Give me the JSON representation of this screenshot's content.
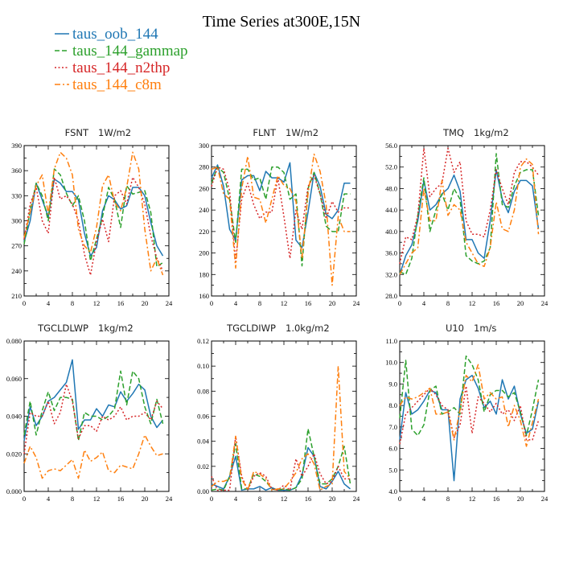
{
  "figure": {
    "title": "Time Series at300E,15N"
  },
  "legend": [
    {
      "label": "taus_oob_144",
      "color": "#1f77b4",
      "dash": "solid"
    },
    {
      "label": "taus_144_gammap",
      "color": "#2ca02c",
      "dash": "dashed"
    },
    {
      "label": "taus_144_n2thp",
      "color": "#d62728",
      "dash": "dotted"
    },
    {
      "label": "taus_144_c8m",
      "color": "#ff7f0e",
      "dash": "dashdot"
    }
  ],
  "chart_data": [
    {
      "type": "line",
      "title_left": "FSNT",
      "title_right": "1W/m2",
      "x": [
        0,
        1,
        2,
        3,
        4,
        5,
        6,
        7,
        8,
        9,
        10,
        11,
        12,
        13,
        14,
        15,
        16,
        17,
        18,
        19,
        20,
        21,
        22,
        23
      ],
      "xlim": [
        0,
        24
      ],
      "xticks": [
        0,
        4,
        8,
        12,
        16,
        20,
        24
      ],
      "xticks_minor": [
        2,
        6,
        10,
        14,
        18,
        22
      ],
      "ylim": [
        210,
        390
      ],
      "yticks": [
        210,
        240,
        270,
        300,
        330,
        360,
        390
      ],
      "ytick_labels": [
        "210",
        "240",
        "270",
        "300",
        "330",
        "360",
        "390"
      ],
      "series": [
        {
          "name": "taus_oob_144",
          "values": [
            275,
            300,
            345,
            325,
            305,
            350,
            345,
            335,
            335,
            325,
            285,
            258,
            268,
            312,
            330,
            325,
            314,
            318,
            340,
            340,
            330,
            298,
            270,
            258
          ]
        },
        {
          "name": "taus_144_gammap",
          "values": [
            272,
            312,
            345,
            330,
            300,
            362,
            355,
            333,
            318,
            330,
            300,
            252,
            278,
            305,
            340,
            325,
            292,
            342,
            332,
            334,
            336,
            310,
            245,
            250
          ]
        },
        {
          "name": "taus_144_n2thp",
          "values": [
            278,
            320,
            340,
            300,
            285,
            352,
            326,
            330,
            320,
            300,
            260,
            235,
            275,
            302,
            275,
            330,
            336,
            320,
            352,
            340,
            320,
            282,
            255,
            240
          ]
        },
        {
          "name": "taus_144_c8m",
          "values": [
            280,
            310,
            342,
            355,
            308,
            362,
            382,
            375,
            355,
            290,
            270,
            262,
            292,
            342,
            355,
            322,
            312,
            340,
            382,
            362,
            290,
            240,
            255,
            235
          ]
        }
      ]
    },
    {
      "type": "line",
      "title_left": "FLNT",
      "title_right": "1W/m2",
      "x": [
        0,
        1,
        2,
        3,
        4,
        5,
        6,
        7,
        8,
        9,
        10,
        11,
        12,
        13,
        14,
        15,
        16,
        17,
        18,
        19,
        20,
        21,
        22,
        23
      ],
      "xlim": [
        0,
        24
      ],
      "xticks": [
        0,
        4,
        8,
        12,
        16,
        20,
        24
      ],
      "xticks_minor": [
        2,
        6,
        10,
        14,
        18,
        22
      ],
      "ylim": [
        160,
        300
      ],
      "yticks": [
        160,
        180,
        200,
        220,
        240,
        260,
        280,
        300
      ],
      "ytick_labels": [
        "160",
        "180",
        "200",
        "220",
        "240",
        "260",
        "280",
        "300"
      ],
      "series": [
        {
          "name": "taus_oob_144",
          "values": [
            270,
            282,
            262,
            222,
            212,
            268,
            272,
            272,
            258,
            276,
            270,
            270,
            266,
            284,
            212,
            205,
            238,
            275,
            262,
            236,
            232,
            240,
            265,
            265
          ]
        },
        {
          "name": "taus_144_gammap",
          "values": [
            265,
            280,
            275,
            250,
            210,
            278,
            278,
            268,
            270,
            250,
            280,
            280,
            275,
            250,
            255,
            188,
            260,
            275,
            255,
            225,
            220,
            220,
            255,
            255
          ]
        },
        {
          "name": "taus_144_n2thp",
          "values": [
            262,
            280,
            278,
            258,
            192,
            250,
            265,
            245,
            232,
            238,
            238,
            270,
            234,
            195,
            240,
            222,
            262,
            272,
            255,
            232,
            248,
            238,
            242,
            242
          ]
        },
        {
          "name": "taus_144_c8m",
          "values": [
            278,
            280,
            255,
            250,
            186,
            260,
            290,
            252,
            250,
            228,
            250,
            272,
            263,
            260,
            248,
            195,
            255,
            292,
            276,
            245,
            170,
            234,
            220,
            220
          ]
        }
      ]
    },
    {
      "type": "line",
      "title_left": "TMQ",
      "title_right": "1kg/m2",
      "x": [
        0,
        1,
        2,
        3,
        4,
        5,
        6,
        7,
        8,
        9,
        10,
        11,
        12,
        13,
        14,
        15,
        16,
        17,
        18,
        19,
        20,
        21,
        22,
        23
      ],
      "xlim": [
        0,
        24
      ],
      "xticks": [
        0,
        4,
        8,
        12,
        16,
        20,
        24
      ],
      "xticks_minor": [
        2,
        6,
        10,
        14,
        18,
        22
      ],
      "ylim": [
        28,
        56
      ],
      "yticks": [
        28,
        32,
        36,
        40,
        44,
        48,
        52,
        56
      ],
      "ytick_labels": [
        "28.0",
        "32.0",
        "36.0",
        "40.0",
        "44.0",
        "48.0",
        "52.0",
        "56.0"
      ],
      "series": [
        {
          "name": "taus_oob_144",
          "values": [
            32,
            35.5,
            37.5,
            42,
            49.5,
            44,
            45,
            47,
            48,
            50.5,
            47.5,
            38.5,
            38.5,
            36,
            35,
            42,
            51.5,
            46,
            43.5,
            47.5,
            49.5,
            49.5,
            48.5,
            40.5
          ]
        },
        {
          "name": "taus_144_gammap",
          "values": [
            32.5,
            32,
            35,
            43,
            50,
            40,
            44,
            47,
            44,
            48,
            46,
            35.5,
            34.5,
            34,
            34.5,
            37,
            54.5,
            45,
            44.5,
            48.5,
            51,
            51.5,
            51.5,
            43
          ]
        },
        {
          "name": "taus_144_n2thp",
          "values": [
            34,
            39,
            38.5,
            43,
            55.5,
            46.5,
            48,
            49,
            55.5,
            51,
            53,
            42,
            39.5,
            39.5,
            39,
            44,
            51.5,
            48,
            45,
            51,
            53,
            53,
            52,
            50.5
          ]
        },
        {
          "name": "taus_144_c8m",
          "values": [
            32,
            34,
            36,
            37,
            48,
            42,
            42,
            49.5,
            43,
            45,
            44,
            38,
            36,
            34,
            33.5,
            37,
            45.5,
            40.5,
            40,
            44,
            52,
            53.5,
            52.5,
            39.5
          ]
        }
      ]
    },
    {
      "type": "line",
      "title_left": "TGCLDLWP",
      "title_right": "1kg/m2",
      "x": [
        0,
        1,
        2,
        3,
        4,
        5,
        6,
        7,
        8,
        9,
        10,
        11,
        12,
        13,
        14,
        15,
        16,
        17,
        18,
        19,
        20,
        21,
        22,
        23
      ],
      "xlim": [
        0,
        24
      ],
      "xticks": [
        0,
        4,
        8,
        12,
        16,
        20,
        24
      ],
      "xticks_minor": [
        2,
        6,
        10,
        14,
        18,
        22
      ],
      "ylim": [
        0,
        0.08
      ],
      "yticks": [
        0,
        0.02,
        0.04,
        0.06,
        0.08
      ],
      "ytick_labels": [
        "0.000",
        "0.020",
        "0.040",
        "0.060",
        "0.080"
      ],
      "series": [
        {
          "name": "taus_oob_144",
          "values": [
            0.027,
            0.045,
            0.035,
            0.04,
            0.048,
            0.05,
            0.054,
            0.058,
            0.07,
            0.033,
            0.038,
            0.038,
            0.044,
            0.04,
            0.046,
            0.045,
            0.053,
            0.048,
            0.052,
            0.057,
            0.054,
            0.04,
            0.034,
            0.038
          ]
        },
        {
          "name": "taus_144_gammap",
          "values": [
            0.03,
            0.048,
            0.03,
            0.043,
            0.053,
            0.043,
            0.05,
            0.05,
            0.049,
            0.027,
            0.042,
            0.04,
            0.04,
            0.038,
            0.04,
            0.044,
            0.064,
            0.046,
            0.064,
            0.06,
            0.045,
            0.036,
            0.049,
            0.036
          ]
        },
        {
          "name": "taus_144_n2thp",
          "values": [
            0.02,
            0.042,
            0.04,
            0.04,
            0.048,
            0.036,
            0.042,
            0.057,
            0.048,
            0.028,
            0.035,
            0.035,
            0.032,
            0.04,
            0.038,
            0.04,
            0.045,
            0.038,
            0.04,
            0.04,
            0.042,
            0.038,
            0.048,
            0.044
          ]
        },
        {
          "name": "taus_144_c8m",
          "values": [
            0.015,
            0.024,
            0.018,
            0.007,
            0.011,
            0.012,
            0.011,
            0.014,
            0.017,
            0.007,
            0.022,
            0.016,
            0.018,
            0.021,
            0.011,
            0.01,
            0.014,
            0.013,
            0.012,
            0.02,
            0.03,
            0.024,
            0.019,
            0.02
          ]
        }
      ]
    },
    {
      "type": "line",
      "title_left": "TGCLDIWP",
      "title_right": "1.0kg/m2",
      "x": [
        0,
        1,
        2,
        3,
        4,
        5,
        6,
        7,
        8,
        9,
        10,
        11,
        12,
        13,
        14,
        15,
        16,
        17,
        18,
        19,
        20,
        21,
        22,
        23
      ],
      "xlim": [
        0,
        24
      ],
      "xticks": [
        0,
        4,
        8,
        12,
        16,
        20,
        24
      ],
      "xticks_minor": [
        2,
        6,
        10,
        14,
        18,
        22
      ],
      "ylim": [
        0,
        0.12
      ],
      "yticks": [
        0,
        0.02,
        0.04,
        0.06,
        0.08,
        0.1,
        0.12
      ],
      "ytick_labels": [
        "0.00",
        "0.02",
        "0.04",
        "0.06",
        "0.08",
        "0.10",
        "0.12"
      ],
      "series": [
        {
          "name": "taus_oob_144",
          "values": [
            0.006,
            0.004,
            0.002,
            0.012,
            0.028,
            0.001,
            0.002,
            0.002,
            0.004,
            0.001,
            0.003,
            0.001,
            0.001,
            0.001,
            0.003,
            0.013,
            0.035,
            0.028,
            0.004,
            0.002,
            0.008,
            0.016,
            0.006,
            0.002
          ]
        },
        {
          "name": "taus_144_gammap",
          "values": [
            0.001,
            0.002,
            0.001,
            0.012,
            0.038,
            0.002,
            0.002,
            0.014,
            0.012,
            0.008,
            0.002,
            0.001,
            0.002,
            0.001,
            0.003,
            0.01,
            0.05,
            0.028,
            0.006,
            0.006,
            0.01,
            0.02,
            0.036,
            0.006
          ]
        },
        {
          "name": "taus_144_n2thp",
          "values": [
            0.012,
            0.001,
            0.001,
            0.001,
            0.044,
            0.012,
            0.001,
            0.012,
            0.015,
            0.012,
            0.002,
            0.001,
            0.005,
            0.001,
            0.026,
            0.012,
            0.02,
            0.03,
            0.014,
            0.006,
            0.008,
            0.02,
            0.01,
            0.01
          ]
        },
        {
          "name": "taus_144_c8m",
          "values": [
            0.004,
            0.008,
            0.008,
            0.01,
            0.044,
            0.01,
            0.001,
            0.016,
            0.014,
            0.01,
            0.001,
            0.002,
            0.002,
            0.008,
            0.015,
            0.026,
            0.03,
            0.022,
            0.001,
            0.004,
            0.006,
            0.1,
            0.016,
            0.01
          ]
        }
      ]
    },
    {
      "type": "line",
      "title_left": "U10",
      "title_right": "1m/s",
      "x": [
        0,
        1,
        2,
        3,
        4,
        5,
        6,
        7,
        8,
        9,
        10,
        11,
        12,
        13,
        14,
        15,
        16,
        17,
        18,
        19,
        20,
        21,
        22,
        23
      ],
      "xlim": [
        0,
        24
      ],
      "xticks": [
        0,
        4,
        8,
        12,
        16,
        20,
        24
      ],
      "xticks_minor": [
        2,
        6,
        10,
        14,
        18,
        22
      ],
      "ylim": [
        4,
        11
      ],
      "yticks": [
        4,
        5,
        6,
        7,
        8,
        9,
        10,
        11
      ],
      "ytick_labels": [
        "4.0",
        "5.0",
        "6.0",
        "7.0",
        "8.0",
        "9.0",
        "10.0",
        "11.0"
      ],
      "series": [
        {
          "name": "taus_oob_144",
          "values": [
            6.4,
            8.6,
            7.6,
            7.8,
            8.2,
            8.7,
            8.6,
            7.8,
            7.8,
            4.5,
            8.3,
            9.2,
            9.4,
            8.8,
            7.9,
            8.2,
            7.6,
            9.2,
            8.3,
            8.9,
            7.6,
            6.7,
            6.9,
            8.2
          ]
        },
        {
          "name": "taus_144_gammap",
          "values": [
            7.4,
            10.1,
            6.9,
            6.6,
            7.1,
            8.7,
            8.9,
            7.6,
            7.7,
            7.9,
            7.6,
            10.3,
            9.9,
            9.2,
            7.7,
            8.5,
            8.7,
            8.7,
            8.4,
            8.6,
            7.7,
            6.6,
            7.8,
            9.2
          ]
        },
        {
          "name": "taus_144_n2thp",
          "values": [
            6.2,
            7.6,
            7.9,
            8.2,
            8.5,
            8.8,
            8.5,
            8.0,
            7.8,
            6.5,
            7.1,
            8.9,
            6.7,
            8.4,
            8.1,
            7.7,
            8.1,
            7.6,
            7.8,
            7.3,
            8.0,
            6.4,
            6.4,
            7.3
          ]
        },
        {
          "name": "taus_144_c8m",
          "values": [
            8.0,
            8.4,
            8.3,
            8.4,
            8.6,
            8.8,
            7.6,
            7.6,
            7.7,
            6.4,
            7.8,
            9.4,
            9.1,
            9.9,
            8.3,
            8.6,
            8.3,
            8.4,
            7.0,
            8.0,
            7.3,
            6.1,
            7.2,
            8.3
          ]
        }
      ]
    }
  ]
}
